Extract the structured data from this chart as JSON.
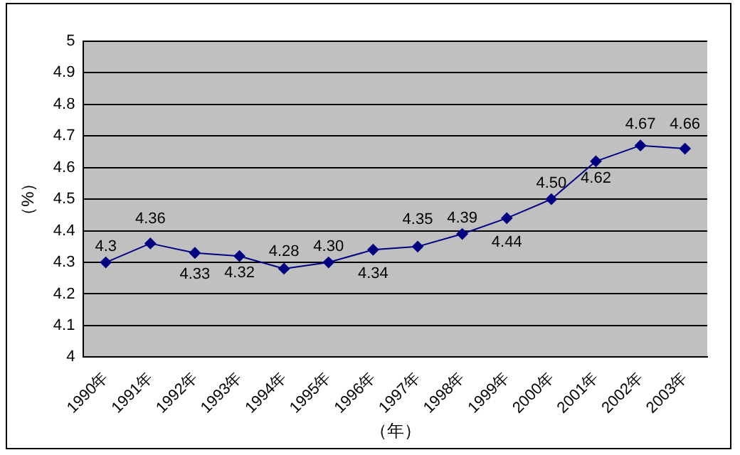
{
  "chart_data": {
    "type": "line",
    "xlabel": "（年）",
    "ylabel": "（%）",
    "categories": [
      "1990年",
      "1991年",
      "1992年",
      "1993年",
      "1994年",
      "1995年",
      "1996年",
      "1997年",
      "1998年",
      "1999年",
      "2000年",
      "2001年",
      "2002年",
      "2003年"
    ],
    "series": [
      {
        "color": "#000080",
        "values": [
          4.3,
          4.36,
          4.33,
          4.32,
          4.28,
          4.3,
          4.34,
          4.35,
          4.39,
          4.44,
          4.5,
          4.62,
          4.67,
          4.66
        ],
        "value_labels": [
          "4.3",
          "4.36",
          "4.33",
          "4.32",
          "4.28",
          "4.30",
          "4.34",
          "4.35",
          "4.39",
          "4.44",
          "4.50",
          "4.62",
          "4.67",
          "4.66"
        ]
      }
    ],
    "ylim": [
      4,
      5
    ],
    "yticks": [
      4,
      4.1,
      4.2,
      4.3,
      4.4,
      4.5,
      4.6,
      4.7,
      4.8,
      4.9,
      5
    ],
    "grid": "y",
    "marker": "diamond",
    "line_style": "solid",
    "legend": false
  }
}
